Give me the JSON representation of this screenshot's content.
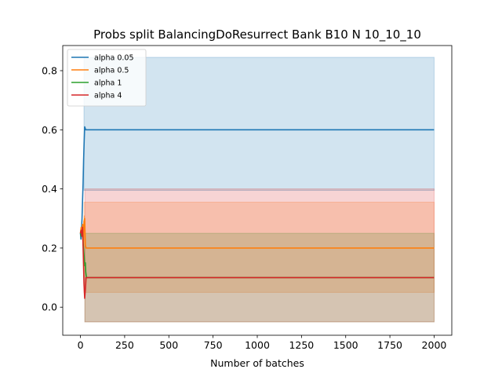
{
  "chart_data": {
    "type": "line",
    "title": "Probs split BalancingDoResurrect Bank B10 N 10_10_10",
    "xlabel": "Number of batches",
    "ylabel": "",
    "xlim": [
      -100,
      2100
    ],
    "ylim": [
      -0.095,
      0.885
    ],
    "xticks": [
      0,
      250,
      500,
      750,
      1000,
      1250,
      1500,
      1750,
      2000
    ],
    "yticks": [
      0.0,
      0.2,
      0.4,
      0.6,
      0.8
    ],
    "ytick_labels": [
      "0.0",
      "0.2",
      "0.4",
      "0.6",
      "0.8"
    ],
    "grid": false,
    "legend_position": "top-left",
    "series": [
      {
        "name": "alpha 0.05",
        "color": "#1f77b4",
        "band_opacity": 0.2,
        "band": [
          [
            20,
            0.395,
            0.845
          ],
          [
            2000,
            0.395,
            0.845
          ]
        ],
        "x": [
          0,
          3,
          6,
          9,
          12,
          15,
          18,
          21,
          24,
          27,
          30,
          40,
          100,
          500,
          1000,
          1500,
          2000
        ],
        "y": [
          0.25,
          0.23,
          0.26,
          0.3,
          0.36,
          0.42,
          0.5,
          0.56,
          0.61,
          0.605,
          0.6,
          0.6,
          0.6,
          0.6,
          0.6,
          0.6,
          0.6
        ]
      },
      {
        "name": "alpha 0.5",
        "color": "#ff7f0e",
        "band_opacity": 0.2,
        "band": [
          [
            20,
            0.05,
            0.355
          ],
          [
            30,
            0.05,
            0.355
          ],
          [
            2000,
            0.05,
            0.355
          ]
        ],
        "x": [
          0,
          4,
          8,
          12,
          16,
          20,
          24,
          28,
          32,
          40,
          100,
          500,
          1000,
          1500,
          2000
        ],
        "y": [
          0.25,
          0.27,
          0.24,
          0.28,
          0.22,
          0.29,
          0.3,
          0.21,
          0.2,
          0.2,
          0.2,
          0.2,
          0.2,
          0.2,
          0.2
        ],
        "spike": [
          [
            18,
            0.1
          ],
          [
            22,
            0.31
          ]
        ]
      },
      {
        "name": "alpha 1",
        "color": "#2ca02c",
        "band_opacity": 0.2,
        "band": [
          [
            25,
            -0.05,
            0.25
          ],
          [
            2000,
            -0.05,
            0.25
          ]
        ],
        "x": [
          0,
          5,
          10,
          15,
          20,
          25,
          28,
          30,
          32,
          35,
          40,
          100,
          500,
          1000,
          1500,
          2000
        ],
        "y": [
          0.25,
          0.24,
          0.26,
          0.22,
          0.18,
          0.14,
          0.15,
          0.12,
          0.11,
          0.1,
          0.1,
          0.1,
          0.1,
          0.1,
          0.1,
          0.1
        ]
      },
      {
        "name": "alpha 4",
        "color": "#d62728",
        "band_opacity": 0.2,
        "band": [
          [
            25,
            -0.05,
            0.4
          ],
          [
            2000,
            -0.05,
            0.4
          ]
        ],
        "x": [
          0,
          4,
          8,
          12,
          16,
          20,
          24,
          28,
          32,
          40,
          100,
          500,
          1000,
          1500,
          2000
        ],
        "y": [
          0.25,
          0.26,
          0.24,
          0.27,
          0.18,
          0.08,
          0.03,
          0.06,
          0.1,
          0.1,
          0.1,
          0.1,
          0.1,
          0.1,
          0.1
        ]
      }
    ]
  }
}
